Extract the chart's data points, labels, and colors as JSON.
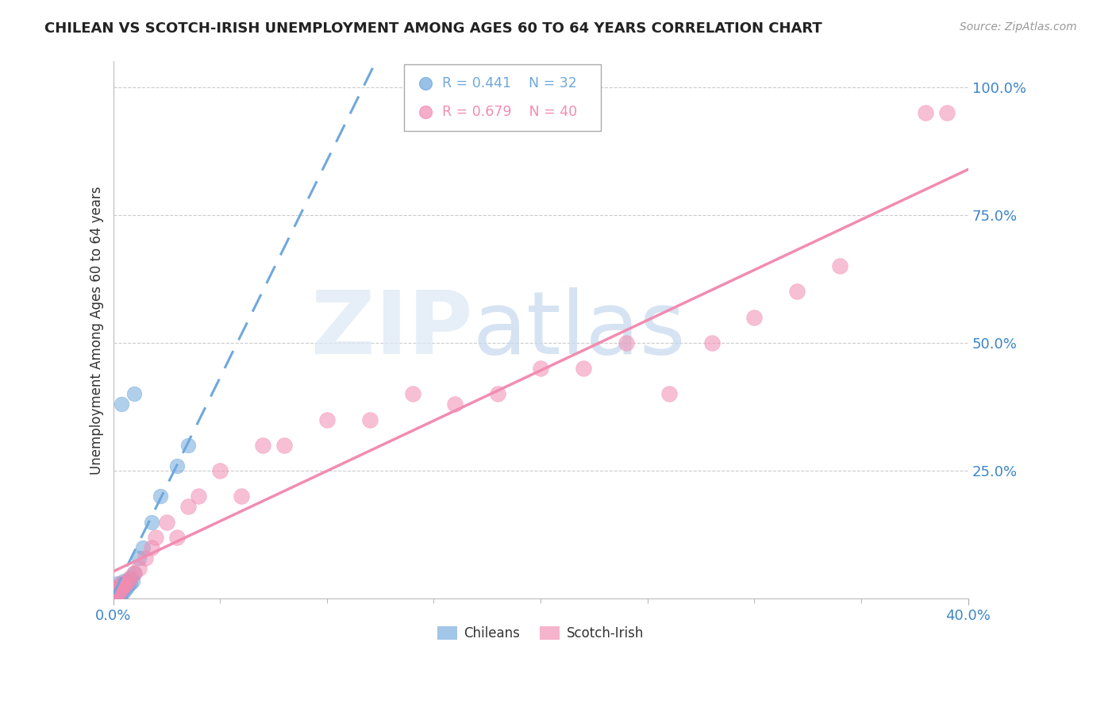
{
  "title": "CHILEAN VS SCOTCH-IRISH UNEMPLOYMENT AMONG AGES 60 TO 64 YEARS CORRELATION CHART",
  "source": "Source: ZipAtlas.com",
  "ylabel": "Unemployment Among Ages 60 to 64 years",
  "xlim": [
    0.0,
    0.4
  ],
  "ylim": [
    0.0,
    1.05
  ],
  "yticks": [
    0.25,
    0.5,
    0.75,
    1.0
  ],
  "ytick_labels": [
    "25.0%",
    "50.0%",
    "75.0%",
    "100.0%"
  ],
  "xticks": [
    0.0,
    0.4
  ],
  "xtick_labels": [
    "0.0%",
    "40.0%"
  ],
  "legend_r1": "R = 0.441",
  "legend_n1": "N = 32",
  "legend_r2": "R = 0.679",
  "legend_n2": "N = 40",
  "color_chilean": "#6fa8dc",
  "color_scotch": "#f28cb1",
  "color_axis_text": "#3d85c8",
  "background_color": "#ffffff",
  "grid_color": "#cccccc",
  "chilean_x": [
    0.001,
    0.001,
    0.001,
    0.002,
    0.002,
    0.002,
    0.002,
    0.003,
    0.003,
    0.003,
    0.003,
    0.004,
    0.004,
    0.005,
    0.005,
    0.005,
    0.006,
    0.006,
    0.007,
    0.007,
    0.008,
    0.008,
    0.009,
    0.01,
    0.012,
    0.014,
    0.018,
    0.022,
    0.03,
    0.035,
    0.01,
    0.004
  ],
  "chilean_y": [
    0.005,
    0.01,
    0.02,
    0.005,
    0.01,
    0.02,
    0.03,
    0.005,
    0.01,
    0.015,
    0.025,
    0.01,
    0.02,
    0.015,
    0.025,
    0.035,
    0.02,
    0.03,
    0.025,
    0.035,
    0.03,
    0.04,
    0.035,
    0.05,
    0.08,
    0.1,
    0.15,
    0.2,
    0.26,
    0.3,
    0.4,
    0.38
  ],
  "scotch_x": [
    0.001,
    0.001,
    0.002,
    0.002,
    0.003,
    0.003,
    0.004,
    0.004,
    0.005,
    0.006,
    0.007,
    0.008,
    0.01,
    0.012,
    0.015,
    0.018,
    0.02,
    0.025,
    0.03,
    0.035,
    0.04,
    0.05,
    0.06,
    0.07,
    0.08,
    0.1,
    0.12,
    0.14,
    0.16,
    0.18,
    0.2,
    0.22,
    0.24,
    0.26,
    0.28,
    0.3,
    0.32,
    0.34,
    0.38,
    0.39
  ],
  "scotch_y": [
    0.005,
    0.015,
    0.01,
    0.02,
    0.015,
    0.025,
    0.02,
    0.03,
    0.025,
    0.03,
    0.035,
    0.04,
    0.05,
    0.06,
    0.08,
    0.1,
    0.12,
    0.15,
    0.12,
    0.18,
    0.2,
    0.25,
    0.2,
    0.3,
    0.3,
    0.35,
    0.35,
    0.4,
    0.38,
    0.4,
    0.45,
    0.45,
    0.5,
    0.4,
    0.5,
    0.55,
    0.6,
    0.65,
    0.95,
    0.95
  ]
}
